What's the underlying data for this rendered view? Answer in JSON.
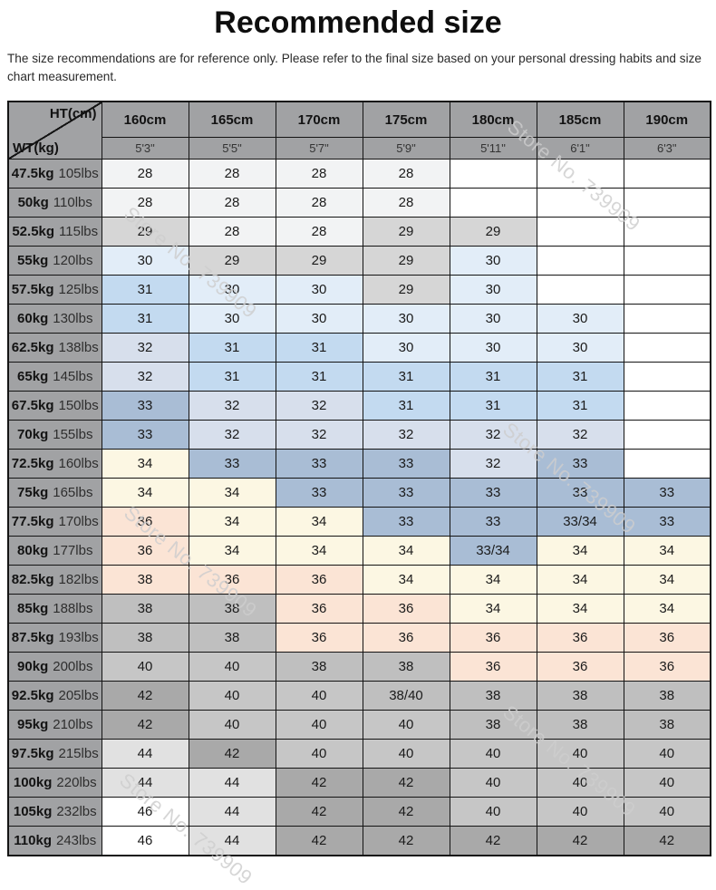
{
  "title": "Recommended size",
  "disclaimer": "The size recommendations are for reference only. Please refer to the final size based on your personal dressing habits and size chart measurement.",
  "watermark": "Store No. 739909",
  "colors": {
    "s28": "#f2f3f4",
    "s29": "#d6d6d6",
    "s30": "#e2edf8",
    "s31": "#c3daf0",
    "s32": "#d7dfec",
    "s33": "#a9bdd5",
    "s34": "#fcf7e3",
    "s36": "#fbe4d5",
    "s38": "#bfbfbf",
    "s40": "#c6c6c6",
    "s42": "#a9a9a9",
    "s44": "#e1e1e1",
    "s46": "#ffffff",
    "empty": "#ffffff",
    "header_bg": "#a1a2a4"
  },
  "table": {
    "corner": {
      "top": "HT(cm)",
      "bottom": "WT(kg)"
    },
    "height_headers": [
      "160cm",
      "165cm",
      "170cm",
      "175cm",
      "180cm",
      "185cm",
      "190cm"
    ],
    "height_feet": [
      "5'3\"",
      "5'5\"",
      "5'7\"",
      "5'9\"",
      "5'11\"",
      "6'1\"",
      "6'3\""
    ],
    "rows": [
      {
        "kg": "47.5kg",
        "lbs": "105lbs",
        "cells": [
          {
            "v": "28",
            "c": "s28"
          },
          {
            "v": "28",
            "c": "s28"
          },
          {
            "v": "28",
            "c": "s28"
          },
          {
            "v": "28",
            "c": "s28"
          },
          null,
          null,
          null
        ]
      },
      {
        "kg": "50kg",
        "lbs": "110lbs",
        "cells": [
          {
            "v": "28",
            "c": "s28"
          },
          {
            "v": "28",
            "c": "s28"
          },
          {
            "v": "28",
            "c": "s28"
          },
          {
            "v": "28",
            "c": "s28"
          },
          null,
          null,
          null
        ]
      },
      {
        "kg": "52.5kg",
        "lbs": "115lbs",
        "cells": [
          {
            "v": "29",
            "c": "s29"
          },
          {
            "v": "28",
            "c": "s28"
          },
          {
            "v": "28",
            "c": "s28"
          },
          {
            "v": "29",
            "c": "s29"
          },
          {
            "v": "29",
            "c": "s29"
          },
          null,
          null
        ]
      },
      {
        "kg": "55kg",
        "lbs": "120lbs",
        "cells": [
          {
            "v": "30",
            "c": "s30"
          },
          {
            "v": "29",
            "c": "s29"
          },
          {
            "v": "29",
            "c": "s29"
          },
          {
            "v": "29",
            "c": "s29"
          },
          {
            "v": "30",
            "c": "s30"
          },
          null,
          null
        ]
      },
      {
        "kg": "57.5kg",
        "lbs": "125lbs",
        "cells": [
          {
            "v": "31",
            "c": "s31"
          },
          {
            "v": "30",
            "c": "s30"
          },
          {
            "v": "30",
            "c": "s30"
          },
          {
            "v": "29",
            "c": "s29"
          },
          {
            "v": "30",
            "c": "s30"
          },
          null,
          null
        ]
      },
      {
        "kg": "60kg",
        "lbs": "130lbs",
        "cells": [
          {
            "v": "31",
            "c": "s31"
          },
          {
            "v": "30",
            "c": "s30"
          },
          {
            "v": "30",
            "c": "s30"
          },
          {
            "v": "30",
            "c": "s30"
          },
          {
            "v": "30",
            "c": "s30"
          },
          {
            "v": "30",
            "c": "s30"
          },
          null
        ]
      },
      {
        "kg": "62.5kg",
        "lbs": "138lbs",
        "cells": [
          {
            "v": "32",
            "c": "s32"
          },
          {
            "v": "31",
            "c": "s31"
          },
          {
            "v": "31",
            "c": "s31"
          },
          {
            "v": "30",
            "c": "s30"
          },
          {
            "v": "30",
            "c": "s30"
          },
          {
            "v": "30",
            "c": "s30"
          },
          null
        ]
      },
      {
        "kg": "65kg",
        "lbs": "145lbs",
        "cells": [
          {
            "v": "32",
            "c": "s32"
          },
          {
            "v": "31",
            "c": "s31"
          },
          {
            "v": "31",
            "c": "s31"
          },
          {
            "v": "31",
            "c": "s31"
          },
          {
            "v": "31",
            "c": "s31"
          },
          {
            "v": "31",
            "c": "s31"
          },
          null
        ]
      },
      {
        "kg": "67.5kg",
        "lbs": "150lbs",
        "cells": [
          {
            "v": "33",
            "c": "s33"
          },
          {
            "v": "32",
            "c": "s32"
          },
          {
            "v": "32",
            "c": "s32"
          },
          {
            "v": "31",
            "c": "s31"
          },
          {
            "v": "31",
            "c": "s31"
          },
          {
            "v": "31",
            "c": "s31"
          },
          null
        ]
      },
      {
        "kg": "70kg",
        "lbs": "155lbs",
        "cells": [
          {
            "v": "33",
            "c": "s33"
          },
          {
            "v": "32",
            "c": "s32"
          },
          {
            "v": "32",
            "c": "s32"
          },
          {
            "v": "32",
            "c": "s32"
          },
          {
            "v": "32",
            "c": "s32"
          },
          {
            "v": "32",
            "c": "s32"
          },
          null
        ]
      },
      {
        "kg": "72.5kg",
        "lbs": "160lbs",
        "cells": [
          {
            "v": "34",
            "c": "s34"
          },
          {
            "v": "33",
            "c": "s33"
          },
          {
            "v": "33",
            "c": "s33"
          },
          {
            "v": "33",
            "c": "s33"
          },
          {
            "v": "32",
            "c": "s32"
          },
          {
            "v": "33",
            "c": "s33"
          },
          null
        ]
      },
      {
        "kg": "75kg",
        "lbs": "165lbs",
        "cells": [
          {
            "v": "34",
            "c": "s34"
          },
          {
            "v": "34",
            "c": "s34"
          },
          {
            "v": "33",
            "c": "s33"
          },
          {
            "v": "33",
            "c": "s33"
          },
          {
            "v": "33",
            "c": "s33"
          },
          {
            "v": "33",
            "c": "s33"
          },
          {
            "v": "33",
            "c": "s33"
          }
        ]
      },
      {
        "kg": "77.5kg",
        "lbs": "170lbs",
        "cells": [
          {
            "v": "36",
            "c": "s36"
          },
          {
            "v": "34",
            "c": "s34"
          },
          {
            "v": "34",
            "c": "s34"
          },
          {
            "v": "33",
            "c": "s33"
          },
          {
            "v": "33",
            "c": "s33"
          },
          {
            "v": "33/34",
            "c": "s33"
          },
          {
            "v": "33",
            "c": "s33"
          }
        ]
      },
      {
        "kg": "80kg",
        "lbs": "177lbs",
        "cells": [
          {
            "v": "36",
            "c": "s36"
          },
          {
            "v": "34",
            "c": "s34"
          },
          {
            "v": "34",
            "c": "s34"
          },
          {
            "v": "34",
            "c": "s34"
          },
          {
            "v": "33/34",
            "c": "s33"
          },
          {
            "v": "34",
            "c": "s34"
          },
          {
            "v": "34",
            "c": "s34"
          }
        ]
      },
      {
        "kg": "82.5kg",
        "lbs": "182lbs",
        "cells": [
          {
            "v": "38",
            "c": "s36"
          },
          {
            "v": "36",
            "c": "s36"
          },
          {
            "v": "36",
            "c": "s36"
          },
          {
            "v": "34",
            "c": "s34"
          },
          {
            "v": "34",
            "c": "s34"
          },
          {
            "v": "34",
            "c": "s34"
          },
          {
            "v": "34",
            "c": "s34"
          }
        ]
      },
      {
        "kg": "85kg",
        "lbs": "188lbs",
        "cells": [
          {
            "v": "38",
            "c": "s38"
          },
          {
            "v": "38",
            "c": "s38"
          },
          {
            "v": "36",
            "c": "s36"
          },
          {
            "v": "36",
            "c": "s36"
          },
          {
            "v": "34",
            "c": "s34"
          },
          {
            "v": "34",
            "c": "s34"
          },
          {
            "v": "34",
            "c": "s34"
          }
        ]
      },
      {
        "kg": "87.5kg",
        "lbs": "193lbs",
        "cells": [
          {
            "v": "38",
            "c": "s38"
          },
          {
            "v": "38",
            "c": "s38"
          },
          {
            "v": "36",
            "c": "s36"
          },
          {
            "v": "36",
            "c": "s36"
          },
          {
            "v": "36",
            "c": "s36"
          },
          {
            "v": "36",
            "c": "s36"
          },
          {
            "v": "36",
            "c": "s36"
          }
        ]
      },
      {
        "kg": "90kg",
        "lbs": "200lbs",
        "cells": [
          {
            "v": "40",
            "c": "s40"
          },
          {
            "v": "40",
            "c": "s40"
          },
          {
            "v": "38",
            "c": "s38"
          },
          {
            "v": "38",
            "c": "s38"
          },
          {
            "v": "36",
            "c": "s36"
          },
          {
            "v": "36",
            "c": "s36"
          },
          {
            "v": "36",
            "c": "s36"
          }
        ]
      },
      {
        "kg": "92.5kg",
        "lbs": "205lbs",
        "cells": [
          {
            "v": "42",
            "c": "s42"
          },
          {
            "v": "40",
            "c": "s40"
          },
          {
            "v": "40",
            "c": "s40"
          },
          {
            "v": "38/40",
            "c": "s38"
          },
          {
            "v": "38",
            "c": "s38"
          },
          {
            "v": "38",
            "c": "s38"
          },
          {
            "v": "38",
            "c": "s38"
          }
        ]
      },
      {
        "kg": "95kg",
        "lbs": "210lbs",
        "cells": [
          {
            "v": "42",
            "c": "s42"
          },
          {
            "v": "40",
            "c": "s40"
          },
          {
            "v": "40",
            "c": "s40"
          },
          {
            "v": "40",
            "c": "s40"
          },
          {
            "v": "38",
            "c": "s38"
          },
          {
            "v": "38",
            "c": "s38"
          },
          {
            "v": "38",
            "c": "s38"
          }
        ]
      },
      {
        "kg": "97.5kg",
        "lbs": "215lbs",
        "cells": [
          {
            "v": "44",
            "c": "s44"
          },
          {
            "v": "42",
            "c": "s42"
          },
          {
            "v": "40",
            "c": "s40"
          },
          {
            "v": "40",
            "c": "s40"
          },
          {
            "v": "40",
            "c": "s40"
          },
          {
            "v": "40",
            "c": "s40"
          },
          {
            "v": "40",
            "c": "s40"
          }
        ]
      },
      {
        "kg": "100kg",
        "lbs": "220lbs",
        "cells": [
          {
            "v": "44",
            "c": "s44"
          },
          {
            "v": "44",
            "c": "s44"
          },
          {
            "v": "42",
            "c": "s42"
          },
          {
            "v": "42",
            "c": "s42"
          },
          {
            "v": "40",
            "c": "s40"
          },
          {
            "v": "40",
            "c": "s40"
          },
          {
            "v": "40",
            "c": "s40"
          }
        ]
      },
      {
        "kg": "105kg",
        "lbs": "232lbs",
        "cells": [
          {
            "v": "46",
            "c": "s46"
          },
          {
            "v": "44",
            "c": "s44"
          },
          {
            "v": "42",
            "c": "s42"
          },
          {
            "v": "42",
            "c": "s42"
          },
          {
            "v": "40",
            "c": "s40"
          },
          {
            "v": "40",
            "c": "s40"
          },
          {
            "v": "40",
            "c": "s40"
          }
        ]
      },
      {
        "kg": "110kg",
        "lbs": "243lbs",
        "cells": [
          {
            "v": "46",
            "c": "s46"
          },
          {
            "v": "44",
            "c": "s44"
          },
          {
            "v": "42",
            "c": "s42"
          },
          {
            "v": "42",
            "c": "s42"
          },
          {
            "v": "42",
            "c": "s42"
          },
          {
            "v": "42",
            "c": "s42"
          },
          {
            "v": "42",
            "c": "s42"
          }
        ]
      }
    ]
  }
}
